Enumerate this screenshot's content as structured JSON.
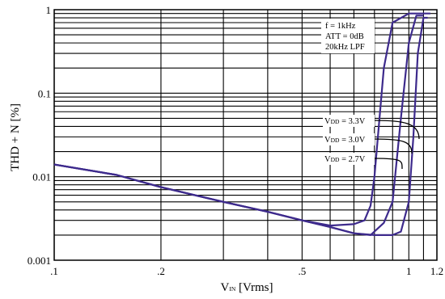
{
  "chart_data": {
    "type": "line",
    "xlabel": "V",
    "xlabel_sub": "IN",
    "xlabel_unit": " [Vrms]",
    "ylabel": "THD + N [%]",
    "x_scale": "log",
    "y_scale": "log",
    "xlim": [
      0.1,
      1.2
    ],
    "ylim": [
      0.001,
      1
    ],
    "x_ticks": [
      {
        "value": 0.1,
        "label": ".1"
      },
      {
        "value": 0.2,
        "label": ".2"
      },
      {
        "value": 0.5,
        "label": ".5"
      },
      {
        "value": 1.0,
        "label": "1"
      },
      {
        "value": 1.2,
        "label": "1.2"
      }
    ],
    "y_ticks": [
      {
        "value": 1,
        "label": "1"
      },
      {
        "value": 0.1,
        "label": "0.1"
      },
      {
        "value": 0.01,
        "label": "0.01"
      },
      {
        "value": 0.001,
        "label": "0.001"
      }
    ],
    "x_grid": [
      0.1,
      0.2,
      0.3,
      0.4,
      0.5,
      0.6,
      0.7,
      0.8,
      0.9,
      1.0,
      1.1,
      1.2
    ],
    "y_grid": [
      0.001,
      0.002,
      0.003,
      0.004,
      0.005,
      0.006,
      0.007,
      0.008,
      0.009,
      0.01,
      0.02,
      0.03,
      0.04,
      0.05,
      0.06,
      0.07,
      0.08,
      0.09,
      0.1,
      0.2,
      0.3,
      0.4,
      0.5,
      0.6,
      0.7,
      0.8,
      0.9,
      1
    ],
    "grid": true,
    "conditions": [
      "f = 1kHz",
      "ATT = 0dB",
      "20kHz LPF"
    ],
    "line_color": "#3d2a8c",
    "series": [
      {
        "name_prefix": "V",
        "name_sub": "DD",
        "name_suffix": " = 3.3V",
        "x": [
          0.1,
          0.15,
          0.2,
          0.3,
          0.4,
          0.5,
          0.6,
          0.7,
          0.8,
          0.9,
          0.95,
          1.0,
          1.03,
          1.06,
          1.1,
          1.13
        ],
        "y": [
          0.014,
          0.0105,
          0.0075,
          0.005,
          0.0038,
          0.003,
          0.0025,
          0.0021,
          0.002,
          0.002,
          0.0022,
          0.005,
          0.03,
          0.3,
          0.8,
          0.8
        ]
      },
      {
        "name_prefix": "V",
        "name_sub": "DD",
        "name_suffix": " = 3.0V",
        "x": [
          0.1,
          0.15,
          0.2,
          0.3,
          0.4,
          0.5,
          0.6,
          0.7,
          0.78,
          0.85,
          0.9,
          0.95,
          1.0,
          1.05,
          1.1
        ],
        "y": [
          0.014,
          0.0105,
          0.0075,
          0.005,
          0.0038,
          0.003,
          0.0025,
          0.0021,
          0.002,
          0.0028,
          0.005,
          0.05,
          0.4,
          0.85,
          0.85
        ]
      },
      {
        "name_prefix": "V",
        "name_sub": "DD",
        "name_suffix": " = 2.7V",
        "x": [
          0.1,
          0.15,
          0.2,
          0.3,
          0.4,
          0.5,
          0.6,
          0.7,
          0.75,
          0.78,
          0.8,
          0.85,
          0.9,
          1.0,
          1.1,
          1.15
        ],
        "y": [
          0.014,
          0.0105,
          0.0075,
          0.005,
          0.0038,
          0.003,
          0.0026,
          0.0027,
          0.003,
          0.0045,
          0.01,
          0.2,
          0.7,
          0.9,
          0.9,
          0.9
        ]
      }
    ]
  }
}
